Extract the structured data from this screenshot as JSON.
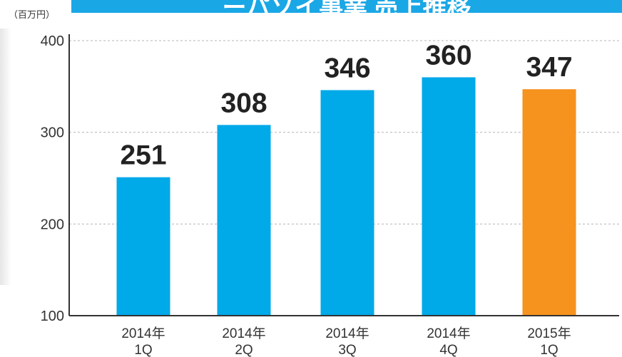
{
  "header": {
    "title_partial": "ーパソイ事業 売上推移",
    "unit": "（百万円）"
  },
  "colors": {
    "banner": "#1aa7e6",
    "bar_default": "#00a9e8",
    "bar_highlight": "#f6921e",
    "grid": "#b5b5b5",
    "axis": "#333333",
    "value_text": "#222222"
  },
  "chart_data": {
    "type": "bar",
    "categories": [
      [
        "2014年",
        "1Q"
      ],
      [
        "2014年",
        "2Q"
      ],
      [
        "2014年",
        "3Q"
      ],
      [
        "2014年",
        "4Q"
      ],
      [
        "2015年",
        "1Q"
      ]
    ],
    "values": [
      251,
      308,
      346,
      360,
      347
    ],
    "value_labels": [
      "251",
      "308",
      "346",
      "360",
      "347"
    ],
    "highlight_index": 4,
    "ylim": [
      100,
      400
    ],
    "yticks": [
      100,
      200,
      300,
      400
    ],
    "ytick_labels": [
      "100",
      "200",
      "300",
      "400"
    ],
    "grid": true,
    "grid_style": "dashed"
  }
}
